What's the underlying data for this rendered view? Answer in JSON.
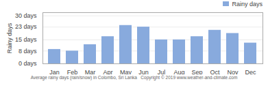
{
  "chart_data": {
    "type": "bar",
    "categories": [
      "Jan",
      "Feb",
      "Mar",
      "Apr",
      "May",
      "Jun",
      "Jul",
      "Aug",
      "Sep",
      "Oct",
      "Nov",
      "Dec"
    ],
    "series": [
      {
        "name": "Rainy days",
        "color": "#88aadd",
        "values": [
          9,
          8,
          12,
          17,
          24,
          23,
          15,
          15,
          17,
          21,
          19,
          13
        ]
      }
    ],
    "ylabel": "Rainy days",
    "xlabel": "Average rainy days (rain/snow) in Colombo, Sri Lanka   Copyright © 2019 www.weather-and-climate.com",
    "ylim": [
      0,
      32
    ],
    "yticks": [
      {
        "value": 0,
        "label": "0 days"
      },
      {
        "value": 8,
        "label": "8 days"
      },
      {
        "value": 15,
        "label": "15 days"
      },
      {
        "value": 23,
        "label": "23 days"
      },
      {
        "value": 30,
        "label": "30 days"
      }
    ],
    "grid": true,
    "legend": "upper right"
  }
}
